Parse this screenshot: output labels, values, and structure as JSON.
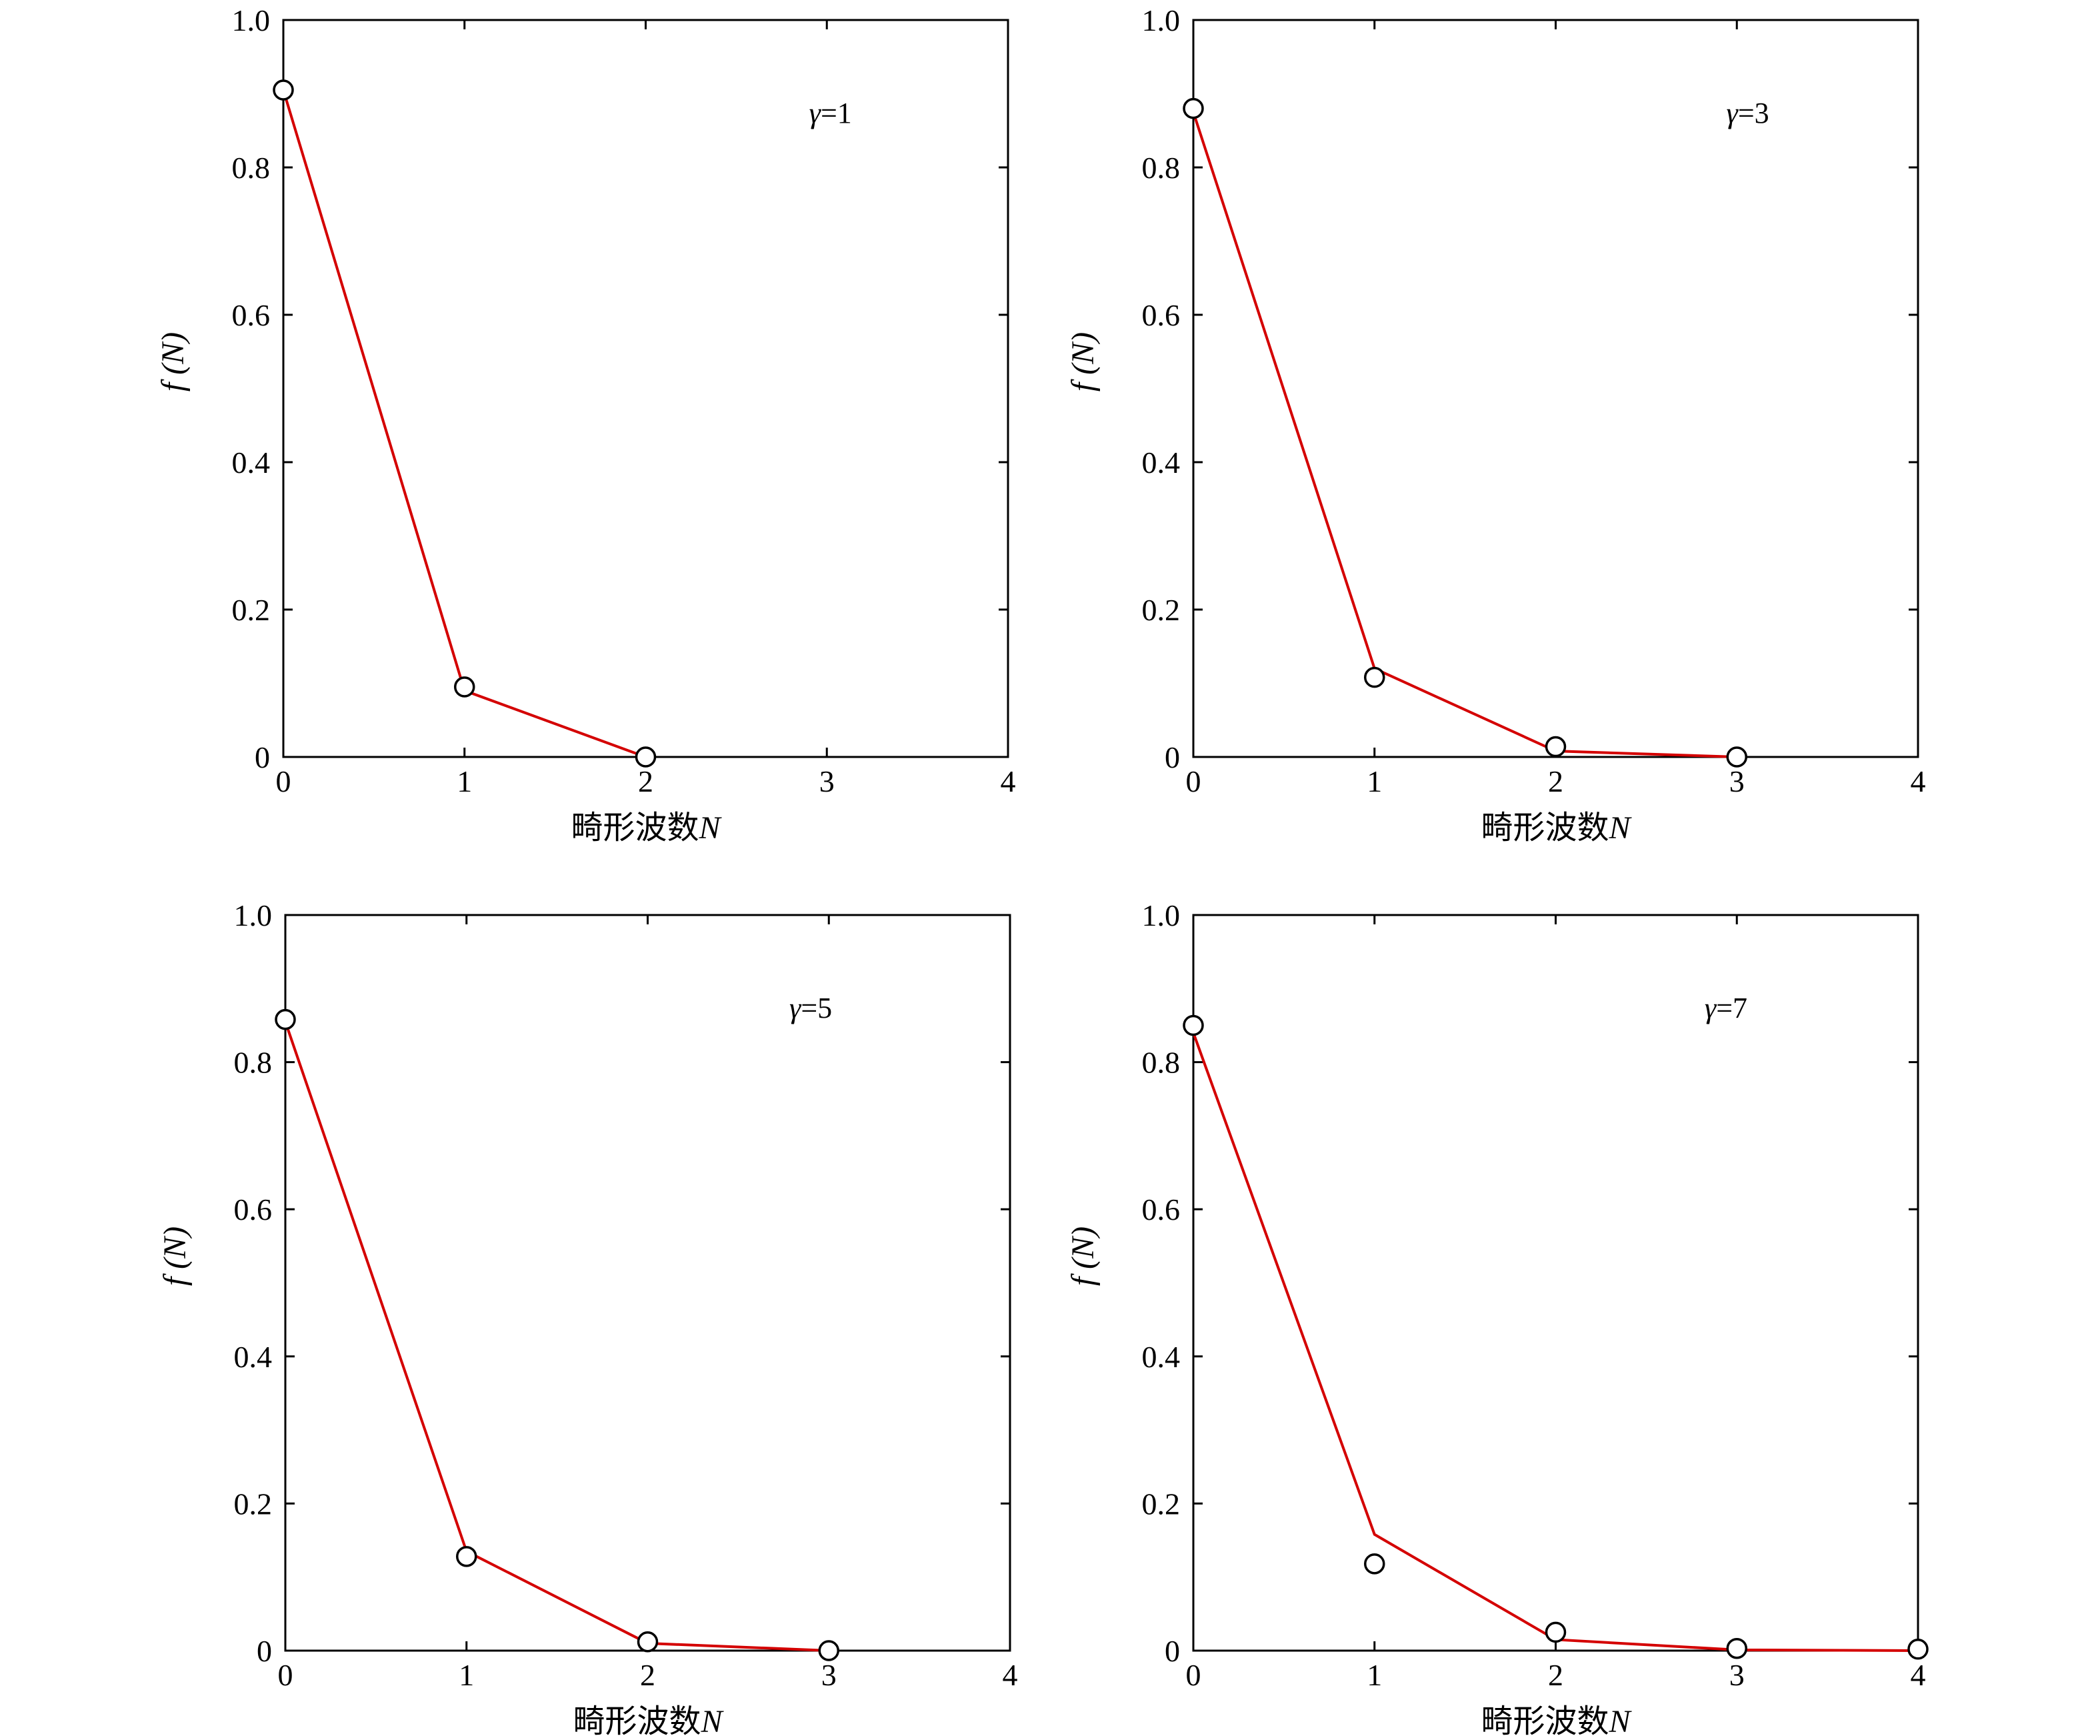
{
  "chart_data": [
    {
      "type": "line",
      "annotation": "γ=1",
      "xlabel": "畸形波数N",
      "ylabel": "f (N)",
      "xlim": [
        0,
        4
      ],
      "ylim": [
        0,
        1
      ],
      "x_ticks": [
        "0",
        "1",
        "2",
        "3",
        "4"
      ],
      "y_ticks": [
        "0",
        "0.2",
        "0.4",
        "0.6",
        "0.8",
        "1.0"
      ],
      "grid": false,
      "series": [
        {
          "kind": "line",
          "color": "#d40000",
          "x": [
            0,
            1,
            2
          ],
          "y": [
            0.905,
            0.09,
            0.0
          ]
        },
        {
          "kind": "scatter",
          "marker": "open-circle",
          "x": [
            0,
            1,
            2
          ],
          "y": [
            0.905,
            0.095,
            0.0
          ]
        }
      ]
    },
    {
      "type": "line",
      "annotation": "γ=3",
      "xlabel": "畸形波数N",
      "ylabel": "f (N)",
      "xlim": [
        0,
        4
      ],
      "ylim": [
        0,
        1
      ],
      "x_ticks": [
        "0",
        "1",
        "2",
        "3",
        "4"
      ],
      "y_ticks": [
        "0",
        "0.2",
        "0.4",
        "0.6",
        "0.8",
        "1.0"
      ],
      "grid": false,
      "series": [
        {
          "kind": "line",
          "color": "#d40000",
          "x": [
            0,
            1,
            2,
            3
          ],
          "y": [
            0.875,
            0.12,
            0.008,
            0.0
          ]
        },
        {
          "kind": "scatter",
          "marker": "open-circle",
          "x": [
            0,
            1,
            2,
            3
          ],
          "y": [
            0.88,
            0.108,
            0.014,
            0.0
          ]
        }
      ]
    },
    {
      "type": "line",
      "annotation": "γ=5",
      "xlabel": "畸形波数N",
      "ylabel": "f (N)",
      "xlim": [
        0,
        4
      ],
      "ylim": [
        0,
        1
      ],
      "x_ticks": [
        "0",
        "1",
        "2",
        "3",
        "4"
      ],
      "y_ticks": [
        "0",
        "0.2",
        "0.4",
        "0.6",
        "0.8",
        "1.0"
      ],
      "grid": false,
      "series": [
        {
          "kind": "line",
          "color": "#d40000",
          "x": [
            0,
            1,
            2,
            3
          ],
          "y": [
            0.855,
            0.135,
            0.01,
            0.0
          ]
        },
        {
          "kind": "scatter",
          "marker": "open-circle",
          "x": [
            0,
            1,
            2,
            3
          ],
          "y": [
            0.858,
            0.128,
            0.012,
            0.0
          ]
        }
      ]
    },
    {
      "type": "line",
      "annotation": "γ=7",
      "xlabel": "畸形波数N",
      "ylabel": "f (N)",
      "xlim": [
        0,
        4
      ],
      "ylim": [
        0,
        1
      ],
      "x_ticks": [
        "0",
        "1",
        "2",
        "3",
        "4"
      ],
      "y_ticks": [
        "0",
        "0.2",
        "0.4",
        "0.6",
        "0.8",
        "1.0"
      ],
      "grid": false,
      "series": [
        {
          "kind": "line",
          "color": "#d40000",
          "x": [
            0,
            1,
            2,
            3,
            4
          ],
          "y": [
            0.84,
            0.158,
            0.015,
            0.001,
            0.0
          ]
        },
        {
          "kind": "scatter",
          "marker": "open-circle",
          "x": [
            0,
            1,
            2,
            3,
            4
          ],
          "y": [
            0.85,
            0.118,
            0.025,
            0.003,
            0.002
          ]
        }
      ]
    }
  ]
}
